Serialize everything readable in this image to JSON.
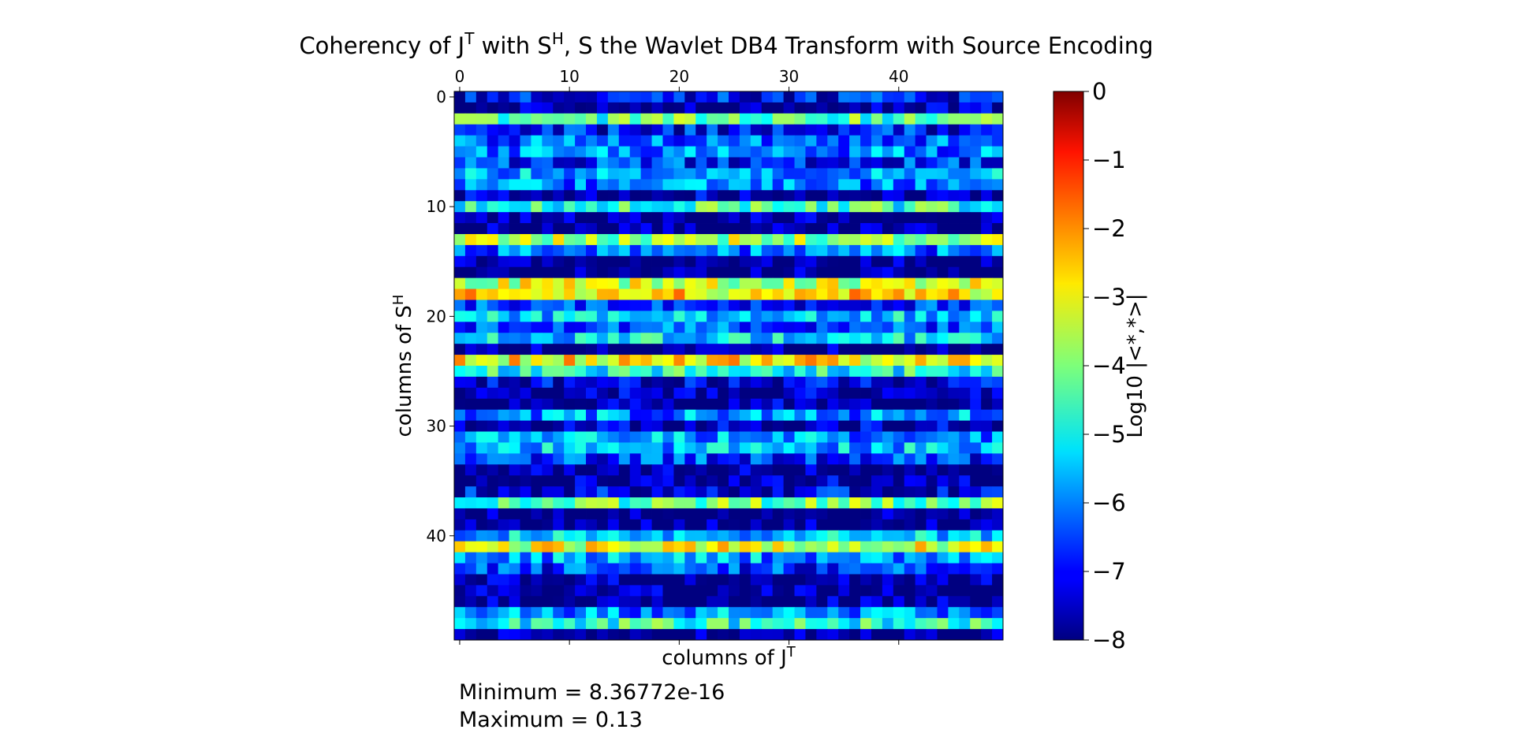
{
  "chart_data": {
    "type": "heatmap",
    "title": "Coherency of J^T with S^H, S the Wavlet DB4 Transform with Source Encoding",
    "xlabel": "columns of J^T",
    "ylabel": "columns of S^H",
    "x_ticks": [
      "0",
      "10",
      "20",
      "30",
      "40"
    ],
    "y_ticks": [
      "0",
      "10",
      "20",
      "30",
      "40"
    ],
    "n_rows": 50,
    "n_cols": 50,
    "value_scale": "log10",
    "colormap": "jet",
    "colorbar": {
      "label": "Log10 |<*,*>|",
      "range": [
        -8,
        0
      ],
      "ticks": [
        "0",
        "−1",
        "−2",
        "−3",
        "−4",
        "−5",
        "−6",
        "−7",
        "−8"
      ]
    },
    "row_mean_log10": [
      -6.9,
      -7.7,
      -4.3,
      -7.0,
      -6.2,
      -6.0,
      -6.7,
      -5.7,
      -6.0,
      -7.6,
      -4.6,
      -7.9,
      -8.0,
      -3.7,
      -6.1,
      -7.9,
      -8.0,
      -3.4,
      -2.8,
      -6.6,
      -5.4,
      -6.4,
      -5.2,
      -8.0,
      -3.0,
      -4.8,
      -7.3,
      -7.7,
      -7.8,
      -5.9,
      -7.6,
      -5.8,
      -5.5,
      -6.6,
      -7.9,
      -7.7,
      -7.2,
      -4.2,
      -8.0,
      -8.0,
      -5.5,
      -3.3,
      -5.8,
      -6.6,
      -7.8,
      -7.9,
      -7.9,
      -5.9,
      -4.7,
      -8.0
    ],
    "minimum": "8.36772e-16",
    "maximum": "0.13"
  },
  "stats": {
    "min_text": "Minimum = 8.36772e-16",
    "max_text": "Maximum = 0.13"
  }
}
